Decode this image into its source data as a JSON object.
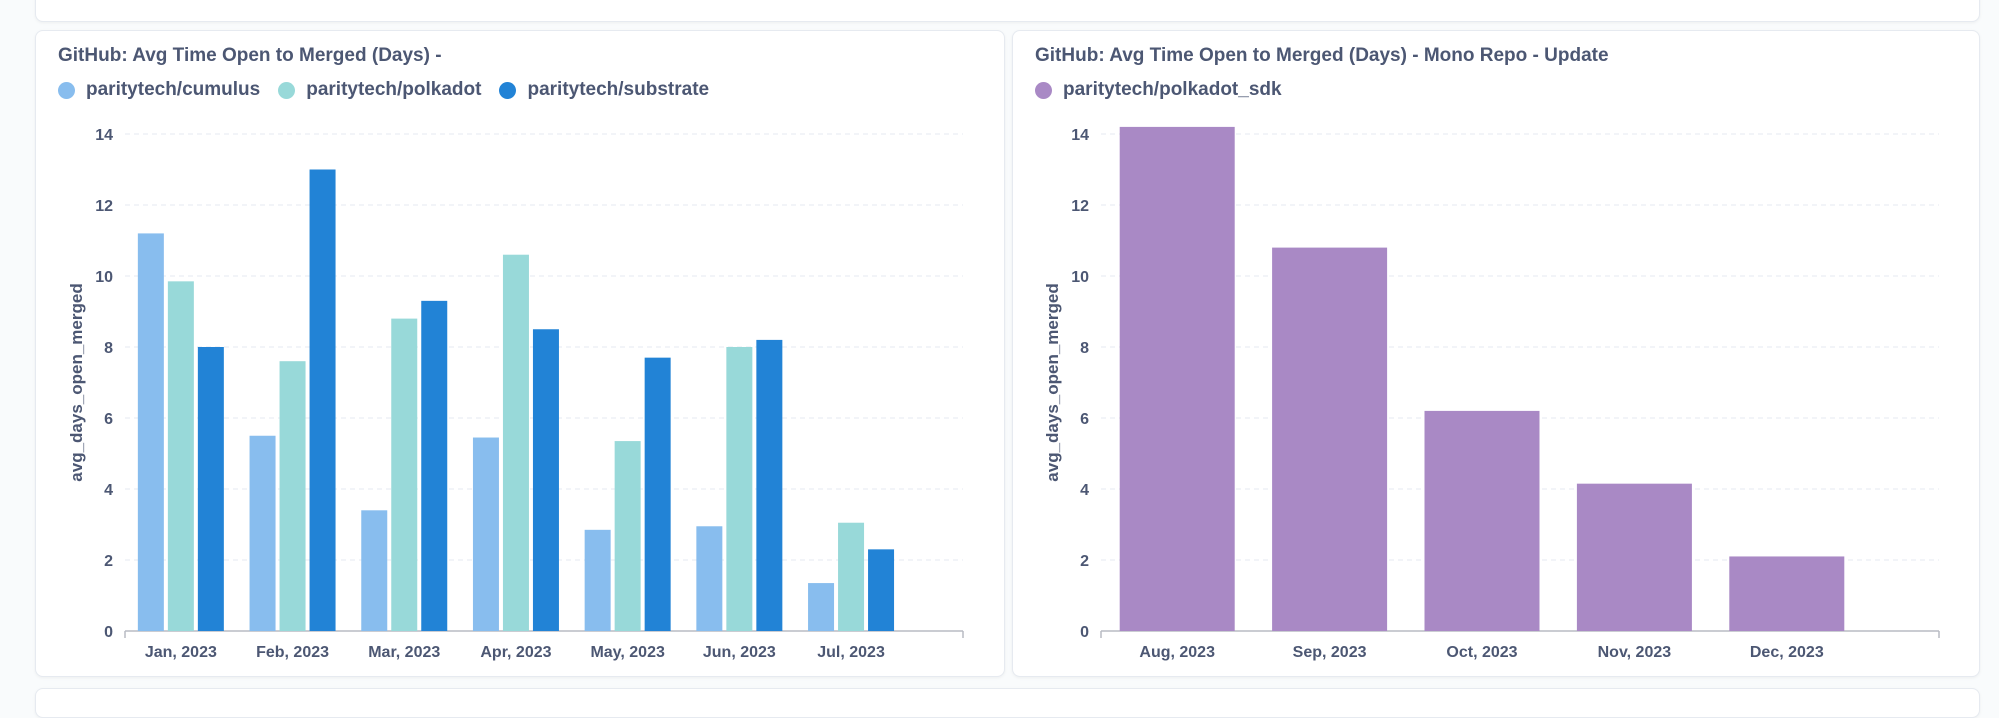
{
  "colors": {
    "cumulus": "#88bdee",
    "polkadot": "#98d9d9",
    "substrate": "#2283d6",
    "polkadot_sdk": "#a989c5",
    "text": "#4c5773",
    "grid": "#e6eaf0",
    "axis": "#b8bbc3"
  },
  "left_card": {
    "title": "GitHub: Avg Time Open to Merged (Days) -"
  },
  "right_card": {
    "title": "GitHub: Avg Time Open to Merged (Days) - Mono Repo - Update"
  },
  "chart_data": [
    {
      "type": "bar",
      "title": "GitHub: Avg Time Open to Merged (Days) -",
      "ylabel": "avg_days_open_merged",
      "xlabel": "",
      "ylim": [
        0,
        14
      ],
      "yticks": [
        0,
        2,
        4,
        6,
        8,
        10,
        12,
        14
      ],
      "grid": true,
      "legend": "top-left",
      "categories": [
        "Jan, 2023",
        "Feb, 2023",
        "Mar, 2023",
        "Apr, 2023",
        "May, 2023",
        "Jun, 2023",
        "Jul, 2023"
      ],
      "series": [
        {
          "name": "paritytech/cumulus",
          "color": "#88bdee",
          "values": [
            11.2,
            5.5,
            3.4,
            5.45,
            2.85,
            2.95,
            1.35
          ]
        },
        {
          "name": "paritytech/polkadot",
          "color": "#98d9d9",
          "values": [
            9.85,
            7.6,
            8.8,
            10.6,
            5.35,
            8.0,
            3.05
          ]
        },
        {
          "name": "paritytech/substrate",
          "color": "#2283d6",
          "values": [
            8.0,
            13.0,
            9.3,
            8.5,
            7.7,
            8.2,
            2.3
          ]
        }
      ]
    },
    {
      "type": "bar",
      "title": "GitHub: Avg Time Open to Merged (Days) - Mono Repo - Update",
      "ylabel": "avg_days_open_merged",
      "xlabel": "",
      "ylim": [
        0,
        14
      ],
      "yticks": [
        0,
        2,
        4,
        6,
        8,
        10,
        12,
        14
      ],
      "grid": true,
      "legend": "top-left",
      "categories": [
        "Aug, 2023",
        "Sep, 2023",
        "Oct, 2023",
        "Nov, 2023",
        "Dec, 2023"
      ],
      "series": [
        {
          "name": "paritytech/polkadot_sdk",
          "color": "#a989c5",
          "values": [
            14.2,
            10.8,
            6.2,
            4.15,
            2.1
          ]
        }
      ]
    }
  ]
}
